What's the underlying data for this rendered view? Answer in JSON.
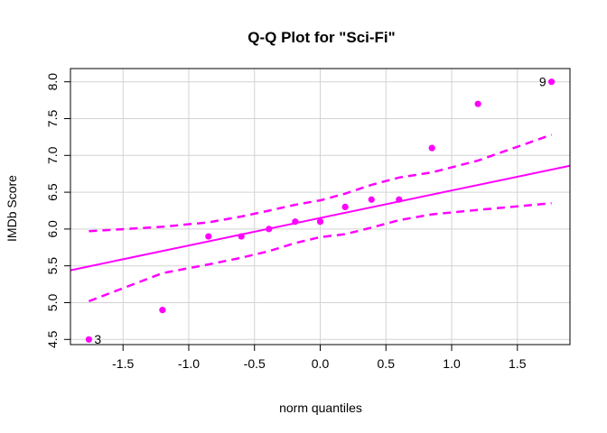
{
  "chart_data": {
    "type": "scatter",
    "title": "Q-Q Plot for \"Sci-Fi\"",
    "xlabel": "norm quantiles",
    "ylabel": "IMDb Score",
    "xlim": [
      -1.9,
      1.9
    ],
    "ylim": [
      4.43,
      8.18
    ],
    "x_ticks": [
      -1.5,
      -1.0,
      -0.5,
      0.0,
      0.5,
      1.0,
      1.5
    ],
    "x_tick_labels": [
      "-1.5",
      "-1.0",
      "-0.5",
      "0.0",
      "0.5",
      "1.0",
      "1.5"
    ],
    "y_ticks": [
      4.5,
      5.0,
      5.5,
      6.0,
      6.5,
      7.0,
      7.5,
      8.0
    ],
    "y_tick_labels": [
      "4.5",
      "5.0",
      "5.5",
      "6.0",
      "6.5",
      "7.0",
      "7.5",
      "8.0"
    ],
    "grid": true,
    "color": "#ff00ff",
    "points": [
      {
        "x": -1.76,
        "y": 4.5
      },
      {
        "x": -1.2,
        "y": 4.9
      },
      {
        "x": -0.85,
        "y": 5.9
      },
      {
        "x": -0.6,
        "y": 5.9
      },
      {
        "x": -0.39,
        "y": 6.0
      },
      {
        "x": -0.19,
        "y": 6.1
      },
      {
        "x": 0.0,
        "y": 6.1
      },
      {
        "x": 0.19,
        "y": 6.3
      },
      {
        "x": 0.39,
        "y": 6.4
      },
      {
        "x": 0.6,
        "y": 6.4
      },
      {
        "x": 0.85,
        "y": 7.1
      },
      {
        "x": 1.2,
        "y": 7.7
      },
      {
        "x": 1.76,
        "y": 8.0
      }
    ],
    "point_labels": [
      {
        "text": "3",
        "x": -1.76,
        "y": 4.5,
        "side": "right"
      },
      {
        "text": "9",
        "x": 1.76,
        "y": 8.0,
        "side": "left"
      }
    ],
    "reference_line": {
      "x": [
        -1.9,
        1.9
      ],
      "y": [
        5.44,
        6.86
      ]
    },
    "confidence_upper": {
      "x": [
        -1.76,
        -1.2,
        -0.85,
        -0.6,
        -0.39,
        -0.19,
        0.0,
        0.19,
        0.39,
        0.6,
        0.85,
        1.2,
        1.76
      ],
      "y": [
        5.97,
        6.03,
        6.09,
        6.17,
        6.25,
        6.33,
        6.39,
        6.48,
        6.6,
        6.7,
        6.77,
        6.93,
        7.28
      ]
    },
    "confidence_lower": {
      "x": [
        -1.76,
        -1.2,
        -0.85,
        -0.6,
        -0.39,
        -0.19,
        0.0,
        0.19,
        0.39,
        0.6,
        0.85,
        1.2,
        1.76
      ],
      "y": [
        5.02,
        5.4,
        5.52,
        5.61,
        5.7,
        5.81,
        5.89,
        5.93,
        6.02,
        6.12,
        6.2,
        6.26,
        6.35
      ]
    }
  }
}
